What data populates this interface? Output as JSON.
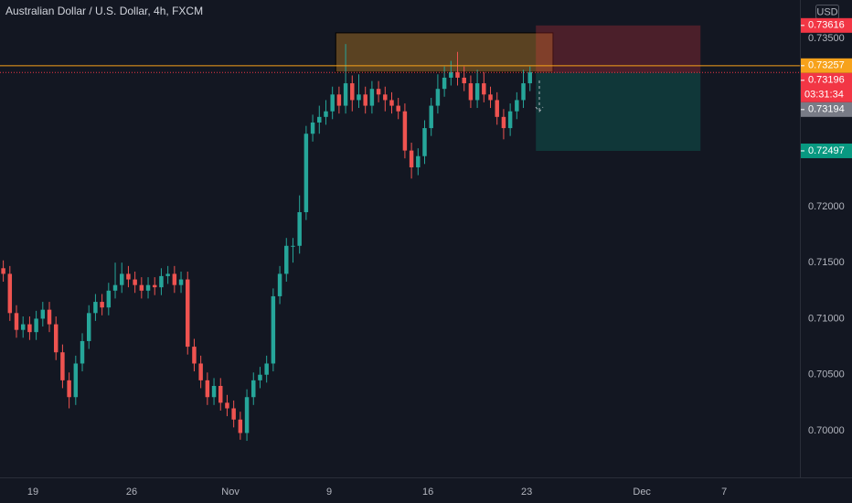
{
  "chart_data": {
    "type": "candlestick",
    "title": "Australian Dollar / U.S. Dollar, 4h, FXCM",
    "currency": "USD",
    "colors": {
      "up": "#26a69a",
      "down": "#ef5350"
    },
    "xlim": [
      0,
      121.5
    ],
    "ylim": [
      0.69584,
      0.73843
    ],
    "grid": false,
    "xticks": [
      {
        "value": 5,
        "label": "19"
      },
      {
        "value": 20,
        "label": "26"
      },
      {
        "value": 35,
        "label": "Nov"
      },
      {
        "value": 50,
        "label": "9"
      },
      {
        "value": 65,
        "label": "16"
      },
      {
        "value": 80,
        "label": "23"
      },
      {
        "value": 97.5,
        "label": "Dec"
      },
      {
        "value": 110,
        "label": "7"
      }
    ],
    "yticks": [
      {
        "value": 0.735,
        "label": "0.73500"
      },
      {
        "value": 0.72,
        "label": "0.72000"
      },
      {
        "value": 0.715,
        "label": "0.71500"
      },
      {
        "value": 0.71,
        "label": "0.71000"
      },
      {
        "value": 0.705,
        "label": "0.70500"
      },
      {
        "value": 0.7,
        "label": "0.70000"
      }
    ],
    "candles": [
      [
        0.7145,
        0.7152,
        0.7133,
        0.714
      ],
      [
        0.714,
        0.7147,
        0.7098,
        0.7105
      ],
      [
        0.7105,
        0.7112,
        0.7083,
        0.709
      ],
      [
        0.709,
        0.7102,
        0.7083,
        0.7095
      ],
      [
        0.7095,
        0.7102,
        0.7081,
        0.7088
      ],
      [
        0.7088,
        0.7107,
        0.7081,
        0.71
      ],
      [
        0.71,
        0.7115,
        0.7093,
        0.7108
      ],
      [
        0.7108,
        0.7115,
        0.7088,
        0.7095
      ],
      [
        0.7095,
        0.7102,
        0.7063,
        0.707
      ],
      [
        0.707,
        0.7077,
        0.7038,
        0.7045
      ],
      [
        0.7045,
        0.7052,
        0.702,
        0.703
      ],
      [
        0.703,
        0.7067,
        0.7023,
        0.706
      ],
      [
        0.706,
        0.7087,
        0.7053,
        0.708
      ],
      [
        0.708,
        0.7112,
        0.7073,
        0.7105
      ],
      [
        0.7105,
        0.7122,
        0.7098,
        0.7115
      ],
      [
        0.7115,
        0.7122,
        0.7103,
        0.711
      ],
      [
        0.711,
        0.7132,
        0.7103,
        0.7125
      ],
      [
        0.7125,
        0.715,
        0.7118,
        0.713
      ],
      [
        0.713,
        0.715,
        0.7123,
        0.714
      ],
      [
        0.714,
        0.7147,
        0.7128,
        0.7135
      ],
      [
        0.7135,
        0.7142,
        0.7123,
        0.713
      ],
      [
        0.713,
        0.7137,
        0.7118,
        0.7125
      ],
      [
        0.7125,
        0.7137,
        0.7118,
        0.713
      ],
      [
        0.713,
        0.7137,
        0.7121,
        0.7128
      ],
      [
        0.7128,
        0.7145,
        0.7121,
        0.7138
      ],
      [
        0.7138,
        0.7147,
        0.7131,
        0.714
      ],
      [
        0.714,
        0.7147,
        0.7123,
        0.713
      ],
      [
        0.713,
        0.7142,
        0.7123,
        0.7135
      ],
      [
        0.7135,
        0.7142,
        0.7068,
        0.7075
      ],
      [
        0.7075,
        0.7082,
        0.7053,
        0.706
      ],
      [
        0.706,
        0.7067,
        0.7038,
        0.7045
      ],
      [
        0.7045,
        0.7052,
        0.7023,
        0.703
      ],
      [
        0.703,
        0.7047,
        0.7023,
        0.704
      ],
      [
        0.704,
        0.7047,
        0.7018,
        0.7025
      ],
      [
        0.7025,
        0.7032,
        0.7013,
        0.702
      ],
      [
        0.702,
        0.7027,
        0.7003,
        0.701
      ],
      [
        0.701,
        0.7017,
        0.6992,
        0.6998
      ],
      [
        0.6998,
        0.7037,
        0.6991,
        0.703
      ],
      [
        0.703,
        0.7052,
        0.7023,
        0.7045
      ],
      [
        0.7045,
        0.7057,
        0.7038,
        0.705
      ],
      [
        0.705,
        0.7067,
        0.7043,
        0.706
      ],
      [
        0.706,
        0.7127,
        0.7053,
        0.712
      ],
      [
        0.712,
        0.7147,
        0.7113,
        0.714
      ],
      [
        0.714,
        0.7172,
        0.7133,
        0.7165
      ],
      [
        0.7165,
        0.7172,
        0.715,
        0.7165
      ],
      [
        0.7165,
        0.721,
        0.7158,
        0.7195
      ],
      [
        0.7195,
        0.7272,
        0.7188,
        0.7265
      ],
      [
        0.7265,
        0.7282,
        0.7258,
        0.7275
      ],
      [
        0.7275,
        0.729,
        0.7265,
        0.728
      ],
      [
        0.728,
        0.7295,
        0.7273,
        0.7285
      ],
      [
        0.7285,
        0.7307,
        0.7278,
        0.73
      ],
      [
        0.73,
        0.7307,
        0.7283,
        0.729
      ],
      [
        0.729,
        0.7345,
        0.7283,
        0.731
      ],
      [
        0.731,
        0.7317,
        0.7285,
        0.7295
      ],
      [
        0.7295,
        0.7318,
        0.7288,
        0.73
      ],
      [
        0.73,
        0.7307,
        0.7283,
        0.729
      ],
      [
        0.729,
        0.7312,
        0.7283,
        0.7305
      ],
      [
        0.7305,
        0.7312,
        0.7293,
        0.73
      ],
      [
        0.73,
        0.7307,
        0.7285,
        0.7295
      ],
      [
        0.7295,
        0.7302,
        0.7283,
        0.729
      ],
      [
        0.729,
        0.7297,
        0.7278,
        0.7285
      ],
      [
        0.7285,
        0.7292,
        0.7243,
        0.725
      ],
      [
        0.725,
        0.7257,
        0.7225,
        0.7235
      ],
      [
        0.7235,
        0.7252,
        0.7228,
        0.7245
      ],
      [
        0.7245,
        0.7277,
        0.7238,
        0.727
      ],
      [
        0.727,
        0.7297,
        0.7263,
        0.729
      ],
      [
        0.729,
        0.7318,
        0.7283,
        0.7305
      ],
      [
        0.7305,
        0.7325,
        0.7298,
        0.7315
      ],
      [
        0.7315,
        0.733,
        0.7308,
        0.732
      ],
      [
        0.732,
        0.7338,
        0.7308,
        0.7315
      ],
      [
        0.7315,
        0.7325,
        0.7303,
        0.731
      ],
      [
        0.731,
        0.7317,
        0.7288,
        0.7295
      ],
      [
        0.7295,
        0.7322,
        0.7288,
        0.731
      ],
      [
        0.731,
        0.732,
        0.7293,
        0.73
      ],
      [
        0.73,
        0.7307,
        0.7288,
        0.7295
      ],
      [
        0.7295,
        0.7302,
        0.7273,
        0.728
      ],
      [
        0.728,
        0.7287,
        0.726,
        0.727
      ],
      [
        0.727,
        0.7292,
        0.7263,
        0.7285
      ],
      [
        0.7285,
        0.7302,
        0.7278,
        0.7295
      ],
      [
        0.7295,
        0.7322,
        0.7288,
        0.731
      ],
      [
        0.731,
        0.7325,
        0.7303,
        0.732
      ]
    ],
    "zone": {
      "top": 0.7355,
      "bottom": 0.732,
      "from": 51,
      "to": 84
    },
    "position": {
      "from": 81.4,
      "to": 106.4,
      "stop": {
        "value": 0.73616,
        "label": "0.73616"
      },
      "entry": {
        "value": 0.73194,
        "label": "0.73194"
      },
      "target": {
        "value": 0.72497,
        "label": "0.72497"
      }
    },
    "lines": [
      {
        "value": 0.73257,
        "label": "0.73257",
        "color": "#f7a21b",
        "style": "solid"
      },
      {
        "value": 0.73196,
        "label": "0.73196",
        "color": "#f23645",
        "style": "dotted"
      }
    ],
    "countdown": "03:31:34"
  }
}
